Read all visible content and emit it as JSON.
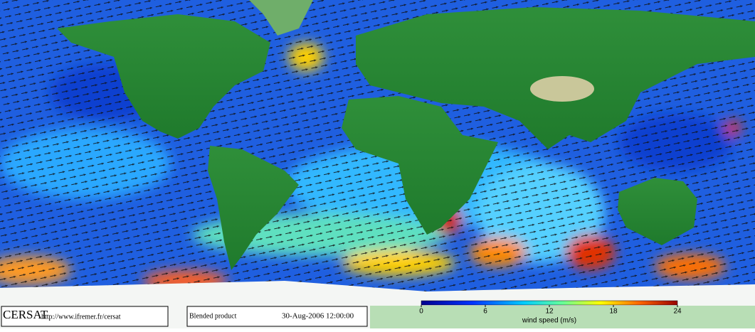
{
  "footer": {
    "logo": "CERSAT",
    "url": "http://www.ifremer.fr/cersat",
    "product": "Blended product",
    "date": "30-Aug-2006 12:00:00"
  },
  "colorbar": {
    "label": "wind speed (m/s)",
    "lim": [
      0,
      24
    ],
    "ticks": [
      0,
      6,
      12,
      18,
      24
    ]
  }
}
